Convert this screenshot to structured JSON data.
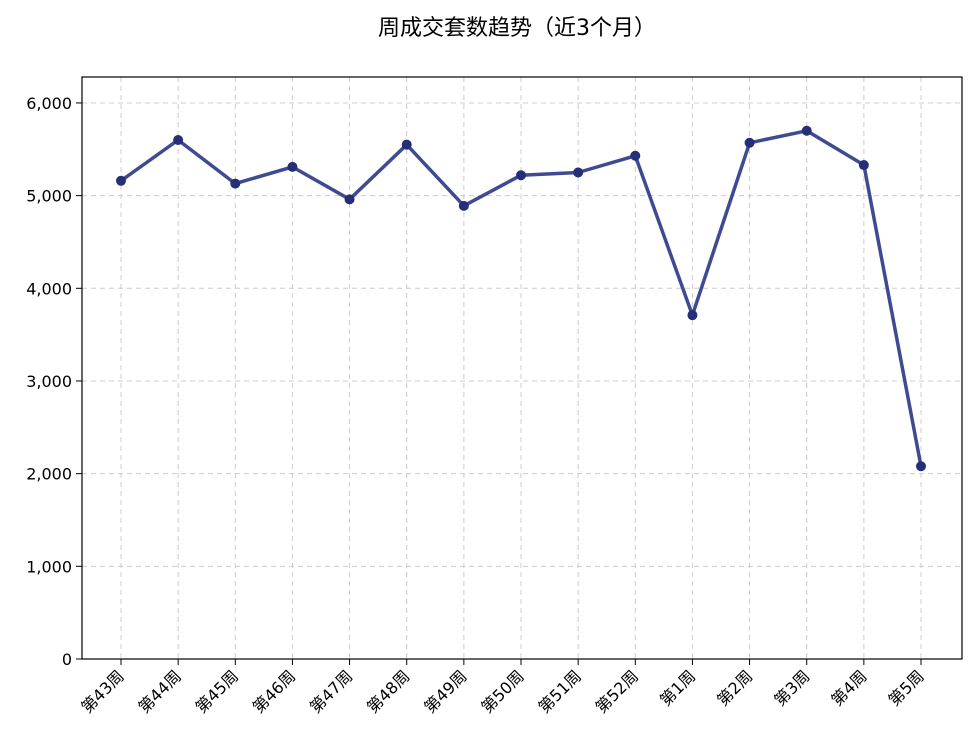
{
  "chart_data": {
    "type": "line",
    "title": "周成交套数趋势（近3个月）",
    "xlabel": "",
    "ylabel": "",
    "categories": [
      "第43周",
      "第44周",
      "第45周",
      "第46周",
      "第47周",
      "第48周",
      "第49周",
      "第50周",
      "第51周",
      "第52周",
      "第1周",
      "第2周",
      "第3周",
      "第4周",
      "第5周"
    ],
    "series": [
      {
        "values": [
          5160,
          5600,
          5130,
          5310,
          4960,
          5550,
          4890,
          5220,
          5250,
          5430,
          3710,
          5570,
          5700,
          5330,
          2080
        ]
      }
    ],
    "ylim": [
      0,
      6280
    ],
    "yticks": [
      0,
      1000,
      2000,
      3000,
      4000,
      5000,
      6000
    ],
    "ytick_labels": [
      "0",
      "1,000",
      "2,000",
      "3,000",
      "4,000",
      "5,000",
      "6,000"
    ],
    "grid": true,
    "line_color": "#3f4a91",
    "marker_color": "#262e78"
  }
}
